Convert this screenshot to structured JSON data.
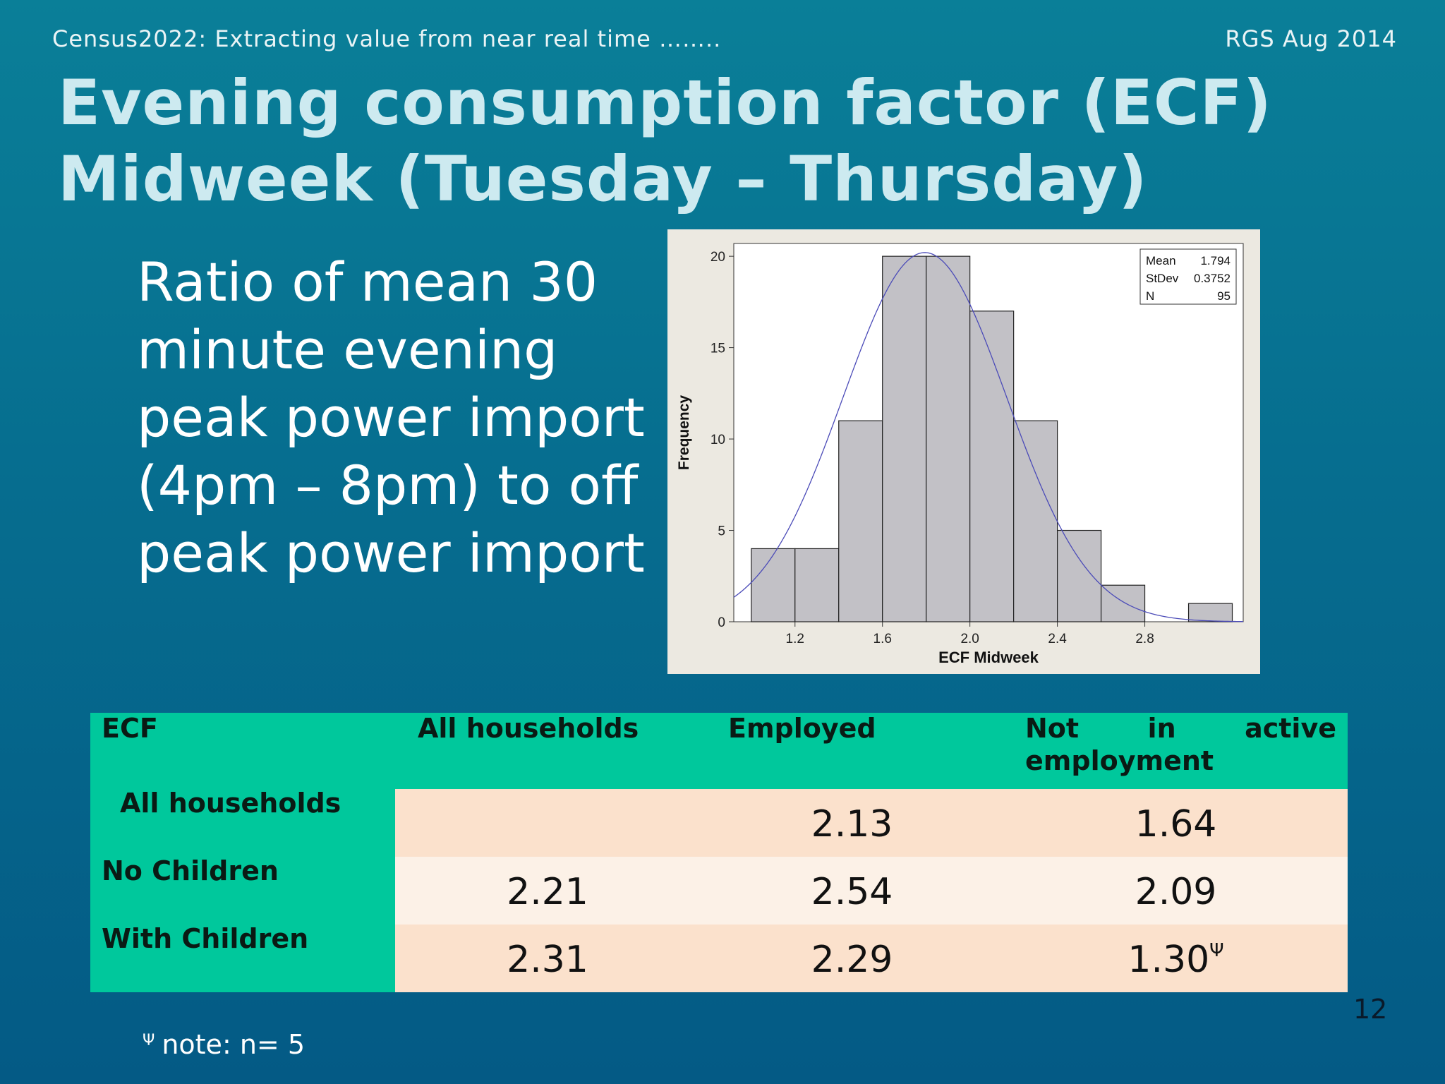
{
  "header": {
    "left": "Census2022: Extracting value from near real time ……..",
    "right": "RGS Aug 2014"
  },
  "title": {
    "line1": "Evening consumption factor (ECF)",
    "line2": "Midweek (Tuesday – Thursday)"
  },
  "body_text": "Ratio of mean 30 minute evening peak power import (4pm – 8pm) to off peak power import",
  "chart_data": {
    "type": "bar",
    "subtype": "histogram",
    "xlabel": "ECF Midweek",
    "ylabel": "Frequency",
    "x_ticks": [
      "1.2",
      "1.6",
      "2.0",
      "2.4",
      "2.8"
    ],
    "y_ticks": [
      "0",
      "5",
      "10",
      "15",
      "20"
    ],
    "xlim": [
      0.92,
      3.25
    ],
    "ylim": [
      0,
      20.7
    ],
    "bin_edges": [
      1.0,
      1.2,
      1.4,
      1.6,
      1.8,
      2.0,
      2.2,
      2.4,
      2.6,
      2.8,
      3.0,
      3.2
    ],
    "values": [
      4,
      4,
      11,
      20,
      20,
      17,
      11,
      5,
      2,
      0,
      1
    ],
    "fit_curve": {
      "type": "normal",
      "mean": 1.794,
      "stdev": 0.3752,
      "n": 95,
      "bin_width": 0.2
    },
    "stats_box": [
      {
        "label": "Mean",
        "value": "1.794"
      },
      {
        "label": "StDev",
        "value": "0.3752"
      },
      {
        "label": "N",
        "value": "95"
      }
    ],
    "colors": {
      "bars": "#c2c1c6",
      "curve": "#4b4bb8",
      "panel": "#ece9e1"
    }
  },
  "table": {
    "headers": [
      "ECF",
      "All households",
      "Employed",
      "Not in active employment"
    ],
    "header_not_in": {
      "w1": "Not",
      "w2": "in",
      "w3": "active",
      "w4": "employment"
    },
    "rows": [
      {
        "label": "All households",
        "values": [
          "",
          "2.13",
          "1.64"
        ]
      },
      {
        "label": "No Children",
        "values": [
          "2.21",
          "2.54",
          "2.09"
        ]
      },
      {
        "label": "With Children",
        "values": [
          "2.31",
          "2.29",
          "1.30"
        ]
      }
    ],
    "superscript_symbol": "Ψ"
  },
  "page_number": "12",
  "footnote": {
    "symbol": "Ψ",
    "text": "note: n= 5"
  }
}
